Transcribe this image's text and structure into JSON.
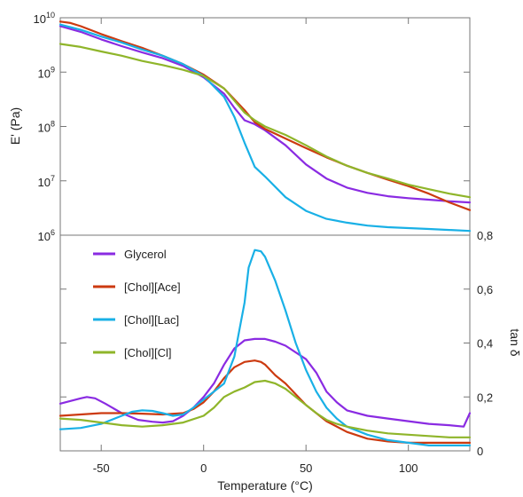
{
  "chart_data": [
    {
      "type": "line",
      "panel": "top",
      "title": "",
      "xlabel": "",
      "ylabel": "E' (Pa)",
      "yscale": "log",
      "xlim": [
        -70,
        130
      ],
      "ylim": [
        1000000,
        10000000000
      ],
      "y_tick_labels": [
        {
          "value": 1000000,
          "base": "10",
          "exp": "6"
        },
        {
          "value": 10000000,
          "base": "10",
          "exp": "7"
        },
        {
          "value": 100000000,
          "base": "10",
          "exp": "8"
        },
        {
          "value": 1000000000,
          "base": "10",
          "exp": "9"
        },
        {
          "value": 10000000000,
          "base": "10",
          "exp": "10"
        }
      ],
      "series": [
        {
          "name": "Glycerol",
          "color": "#8a2be2",
          "x": [
            -70,
            -60,
            -50,
            -40,
            -30,
            -20,
            -10,
            0,
            10,
            15,
            20,
            25,
            30,
            40,
            50,
            60,
            70,
            80,
            90,
            100,
            110,
            120,
            130
          ],
          "y": [
            7000000000,
            5500000000,
            4000000000,
            3000000000,
            2300000000,
            1800000000,
            1300000000,
            800000000,
            400000000,
            220000000,
            130000000,
            110000000,
            85000000,
            45000000,
            20000000,
            11000000,
            7500000,
            6000000,
            5200000,
            4800000,
            4500000,
            4200000,
            4000000
          ]
        },
        {
          "name": "[Chol][Ace]",
          "color": "#cc3a10",
          "x": [
            -70,
            -65,
            -60,
            -50,
            -40,
            -30,
            -20,
            -10,
            0,
            10,
            20,
            25,
            30,
            40,
            50,
            60,
            70,
            80,
            90,
            100,
            110,
            120,
            130
          ],
          "y": [
            8500000000,
            8000000000,
            7000000000,
            5000000000,
            3700000000,
            2800000000,
            2000000000,
            1400000000,
            900000000,
            500000000,
            200000000,
            120000000,
            90000000,
            60000000,
            40000000,
            27000000,
            19000000,
            14000000,
            10500000,
            8000000,
            5800000,
            4000000,
            2900000
          ]
        },
        {
          "name": "[Chol][Lac]",
          "color": "#19b0e6",
          "x": [
            -70,
            -60,
            -50,
            -40,
            -30,
            -20,
            -10,
            0,
            10,
            15,
            20,
            25,
            30,
            40,
            50,
            60,
            70,
            80,
            90,
            100,
            110,
            120,
            130
          ],
          "y": [
            7500000000,
            6000000000,
            4500000000,
            3500000000,
            2600000000,
            2000000000,
            1400000000,
            850000000,
            350000000,
            150000000,
            50000000,
            18000000,
            12000000,
            5000000,
            2800000,
            2000000,
            1700000,
            1500000,
            1400000,
            1350000,
            1300000,
            1250000,
            1200000
          ]
        },
        {
          "name": "[Chol][Cl]",
          "color": "#8fb52a",
          "x": [
            -70,
            -60,
            -50,
            -40,
            -30,
            -20,
            -10,
            0,
            10,
            20,
            25,
            30,
            40,
            50,
            60,
            70,
            80,
            90,
            100,
            110,
            120,
            130
          ],
          "y": [
            3300000000,
            2900000000,
            2400000000,
            2000000000,
            1600000000,
            1350000000,
            1100000000,
            850000000,
            500000000,
            180000000,
            130000000,
            100000000,
            70000000,
            45000000,
            28000000,
            19000000,
            14000000,
            11000000,
            8500000,
            7000000,
            5800000,
            5000000
          ]
        }
      ]
    },
    {
      "type": "line",
      "panel": "bottom",
      "title": "",
      "xlabel": "Temperature (°C)",
      "ylabel": "tan δ",
      "xlim": [
        -70,
        130
      ],
      "ylim": [
        0,
        0.8
      ],
      "x_tick_labels": [
        "-50",
        "0",
        "50",
        "100"
      ],
      "x_ticks": [
        -50,
        0,
        50,
        100
      ],
      "y_tick_labels": [
        "0",
        "0,2",
        "0,4",
        "0,6",
        "0,8"
      ],
      "y_ticks": [
        0,
        0.2,
        0.4,
        0.6,
        0.8
      ],
      "legend_position": "top-left",
      "series": [
        {
          "name": "Glycerol",
          "color": "#8a2be2",
          "x": [
            -70,
            -65,
            -60,
            -57,
            -53,
            -48,
            -40,
            -32,
            -25,
            -20,
            -15,
            -10,
            -5,
            0,
            5,
            10,
            15,
            20,
            25,
            30,
            35,
            40,
            50,
            55,
            60,
            65,
            70,
            80,
            90,
            100,
            110,
            120,
            127,
            130
          ],
          "y": [
            0.175,
            0.185,
            0.195,
            0.2,
            0.195,
            0.175,
            0.14,
            0.115,
            0.108,
            0.105,
            0.11,
            0.13,
            0.16,
            0.2,
            0.25,
            0.32,
            0.38,
            0.41,
            0.415,
            0.415,
            0.405,
            0.39,
            0.34,
            0.29,
            0.22,
            0.18,
            0.15,
            0.13,
            0.12,
            0.11,
            0.1,
            0.095,
            0.09,
            0.14
          ]
        },
        {
          "name": "[Chol][Ace]",
          "color": "#cc3a10",
          "x": [
            -70,
            -60,
            -50,
            -40,
            -30,
            -20,
            -10,
            -5,
            0,
            5,
            10,
            15,
            20,
            25,
            28,
            30,
            35,
            40,
            45,
            50,
            55,
            60,
            70,
            80,
            90,
            100,
            110,
            120,
            130
          ],
          "y": [
            0.13,
            0.135,
            0.14,
            0.14,
            0.138,
            0.135,
            0.14,
            0.155,
            0.18,
            0.22,
            0.27,
            0.31,
            0.33,
            0.335,
            0.33,
            0.32,
            0.28,
            0.25,
            0.21,
            0.17,
            0.14,
            0.11,
            0.07,
            0.045,
            0.035,
            0.03,
            0.03,
            0.03,
            0.03
          ]
        },
        {
          "name": "[Chol][Lac]",
          "color": "#19b0e6",
          "x": [
            -70,
            -60,
            -50,
            -40,
            -35,
            -30,
            -25,
            -20,
            -15,
            -10,
            -5,
            0,
            5,
            10,
            15,
            20,
            22,
            25,
            28,
            30,
            35,
            40,
            45,
            50,
            55,
            60,
            65,
            70,
            80,
            90,
            100,
            110,
            120,
            130
          ],
          "y": [
            0.08,
            0.085,
            0.1,
            0.13,
            0.145,
            0.15,
            0.148,
            0.14,
            0.13,
            0.135,
            0.16,
            0.19,
            0.22,
            0.25,
            0.35,
            0.55,
            0.68,
            0.745,
            0.74,
            0.72,
            0.63,
            0.52,
            0.4,
            0.3,
            0.22,
            0.16,
            0.12,
            0.09,
            0.06,
            0.04,
            0.03,
            0.02,
            0.02,
            0.02
          ]
        },
        {
          "name": "[Chol][Cl]",
          "color": "#8fb52a",
          "x": [
            -70,
            -60,
            -50,
            -40,
            -30,
            -20,
            -10,
            0,
            5,
            10,
            15,
            20,
            25,
            30,
            35,
            40,
            45,
            50,
            55,
            60,
            65,
            70,
            80,
            90,
            100,
            110,
            120,
            130
          ],
          "y": [
            0.12,
            0.115,
            0.105,
            0.095,
            0.09,
            0.095,
            0.105,
            0.13,
            0.16,
            0.2,
            0.22,
            0.235,
            0.255,
            0.26,
            0.25,
            0.23,
            0.2,
            0.17,
            0.14,
            0.115,
            0.1,
            0.09,
            0.075,
            0.065,
            0.06,
            0.055,
            0.05,
            0.05
          ]
        }
      ]
    }
  ]
}
